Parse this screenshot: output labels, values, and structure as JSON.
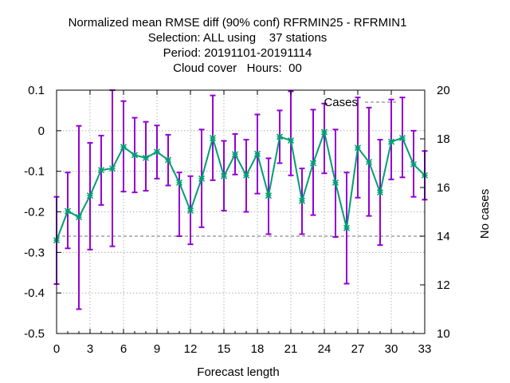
{
  "chart_data": {
    "type": "line",
    "title_lines": [
      "Normalized mean RMSE diff (90% conf) RFRMIN25 - RFRMIN1",
      "Selection: ALL using    37 stations",
      "Period: 20191101-20191114",
      "Cloud cover   Hours:  00"
    ],
    "xlabel": "Forecast length",
    "ylabel": "",
    "y2label": "No cases",
    "xlim": [
      0,
      33
    ],
    "ylim": [
      -0.5,
      0.1
    ],
    "y2lim": [
      10,
      20
    ],
    "x_ticks": [
      0,
      3,
      6,
      9,
      12,
      15,
      18,
      21,
      24,
      27,
      30,
      33
    ],
    "y_ticks": [
      0.1,
      0,
      -0.1,
      -0.2,
      -0.3,
      -0.4,
      -0.5
    ],
    "y_tick_labels": [
      "0.1",
      "0",
      "-0.1",
      "-0.2",
      "-0.3",
      "-0.4",
      "-0.5"
    ],
    "y2_ticks": [
      20,
      18,
      16,
      14,
      12,
      10
    ],
    "grid": true,
    "legend": {
      "position": "top-right",
      "entries": [
        "Cases"
      ]
    },
    "colors": {
      "series": "#009e73",
      "errorbar": "#9400d3",
      "cases": "#a0a0a0"
    },
    "x": [
      0,
      1,
      2,
      3,
      4,
      5,
      6,
      7,
      8,
      9,
      10,
      11,
      12,
      13,
      14,
      15,
      16,
      17,
      18,
      19,
      20,
      21,
      22,
      23,
      24,
      25,
      26,
      27,
      28,
      29,
      30,
      31,
      32,
      33
    ],
    "series": [
      {
        "values": [
          -0.27,
          -0.198,
          -0.213,
          -0.16,
          -0.097,
          -0.093,
          -0.04,
          -0.06,
          -0.067,
          -0.052,
          -0.072,
          -0.128,
          -0.197,
          -0.118,
          -0.018,
          -0.112,
          -0.058,
          -0.11,
          -0.057,
          -0.16,
          -0.015,
          -0.024,
          -0.173,
          -0.08,
          -0.003,
          -0.128,
          -0.24,
          -0.042,
          -0.077,
          -0.152,
          -0.027,
          -0.018,
          -0.083,
          -0.11
        ],
        "lower": [
          -0.378,
          -0.29,
          -0.44,
          -0.293,
          -0.183,
          -0.285,
          -0.15,
          -0.152,
          -0.148,
          -0.118,
          -0.135,
          -0.26,
          -0.28,
          -0.238,
          -0.122,
          -0.197,
          -0.108,
          -0.2,
          -0.155,
          -0.255,
          -0.08,
          -0.11,
          -0.255,
          -0.208,
          -0.105,
          -0.262,
          -0.377,
          -0.165,
          -0.21,
          -0.282,
          -0.12,
          -0.115,
          -0.163,
          -0.17
        ],
        "upper": [
          -0.163,
          -0.103,
          0.012,
          -0.03,
          -0.012,
          0.1,
          0.073,
          0.032,
          0.022,
          0.013,
          -0.01,
          -0.103,
          -0.112,
          0.003,
          0.087,
          -0.025,
          -0.008,
          -0.022,
          0.04,
          -0.068,
          0.05,
          0.097,
          -0.093,
          0.052,
          0.067,
          0.003,
          -0.103,
          0.082,
          0.057,
          -0.022,
          0.077,
          0.082,
          0.0,
          -0.05
        ]
      },
      {
        "name": "Cases",
        "axis": "y2",
        "values": [
          14,
          14,
          14,
          14,
          14,
          14,
          14,
          14,
          14,
          14,
          14,
          14,
          14,
          14,
          14,
          14,
          14,
          14,
          14,
          14,
          14,
          14,
          14,
          14,
          14,
          14,
          14,
          14,
          14,
          14,
          14,
          14,
          14,
          14
        ]
      }
    ]
  }
}
